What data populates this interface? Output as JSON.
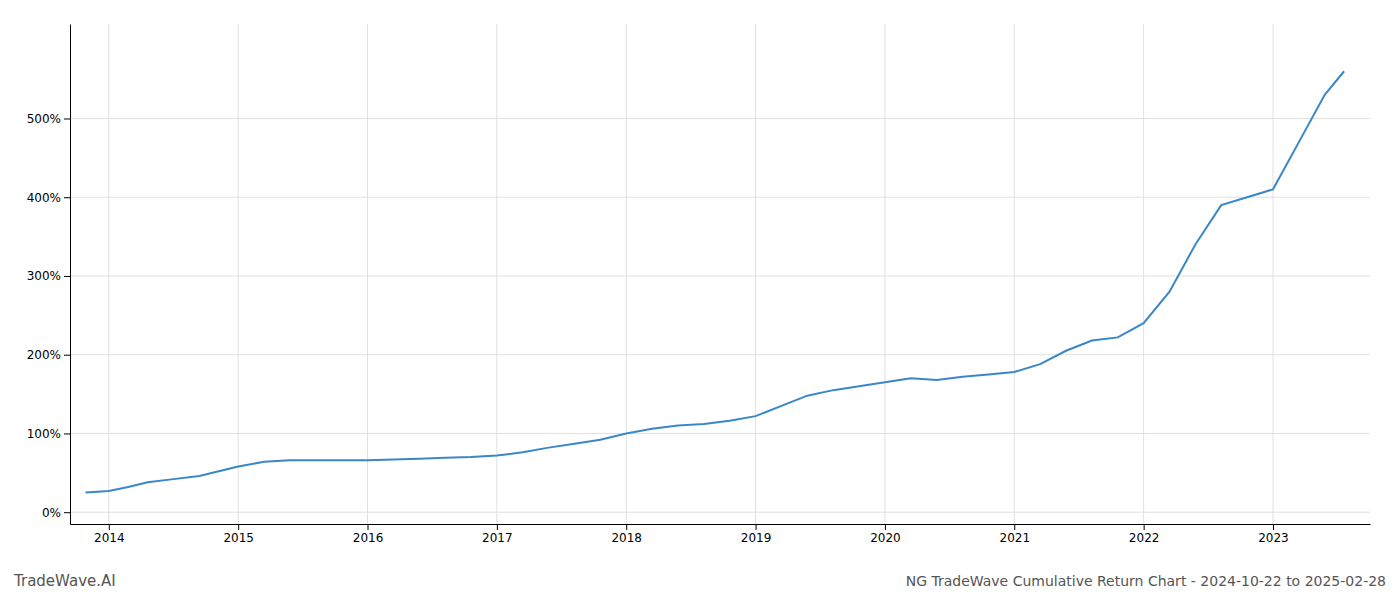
{
  "chart_data": {
    "type": "line",
    "title": "NG TradeWave Cumulative Return Chart - 2024-10-22 to 2025-02-28",
    "annotations": [
      "TradeWave.AI"
    ],
    "color": "#3a87c8",
    "grid": true,
    "x": [
      2013.82,
      2014.0,
      2014.15,
      2014.3,
      2014.5,
      2014.7,
      2014.85,
      2015.0,
      2015.2,
      2015.4,
      2015.6,
      2015.8,
      2016.0,
      2016.2,
      2016.4,
      2016.6,
      2016.8,
      2017.0,
      2017.2,
      2017.4,
      2017.6,
      2017.8,
      2018.0,
      2018.2,
      2018.4,
      2018.6,
      2018.8,
      2019.0,
      2019.2,
      2019.4,
      2019.6,
      2019.8,
      2020.0,
      2020.2,
      2020.4,
      2020.6,
      2020.8,
      2021.0,
      2021.2,
      2021.4,
      2021.6,
      2021.8,
      2022.0,
      2022.2,
      2022.4,
      2022.6,
      2022.8,
      2023.0,
      2023.2,
      2023.4,
      2023.55
    ],
    "values": [
      25,
      27,
      32,
      38,
      42,
      46,
      52,
      58,
      64,
      66,
      66,
      66,
      66,
      67,
      68,
      69,
      70,
      72,
      76,
      82,
      87,
      92,
      100,
      106,
      110,
      112,
      116,
      122,
      135,
      148,
      155,
      160,
      165,
      170,
      168,
      172,
      175,
      178,
      188,
      205,
      218,
      222,
      240,
      280,
      340,
      390,
      400,
      410,
      470,
      530,
      560
    ],
    "xlim": [
      2013.7,
      2023.75
    ],
    "xticks": [
      2014,
      2015,
      2016,
      2017,
      2018,
      2019,
      2020,
      2021,
      2022,
      2023
    ],
    "ylim": [
      -15,
      620
    ],
    "yticks": [
      {
        "value": 0,
        "label": "0%"
      },
      {
        "value": 100,
        "label": "100%"
      },
      {
        "value": 200,
        "label": "200%"
      },
      {
        "value": 300,
        "label": "300%"
      },
      {
        "value": 400,
        "label": "400%"
      },
      {
        "value": 500,
        "label": "500%"
      }
    ]
  }
}
